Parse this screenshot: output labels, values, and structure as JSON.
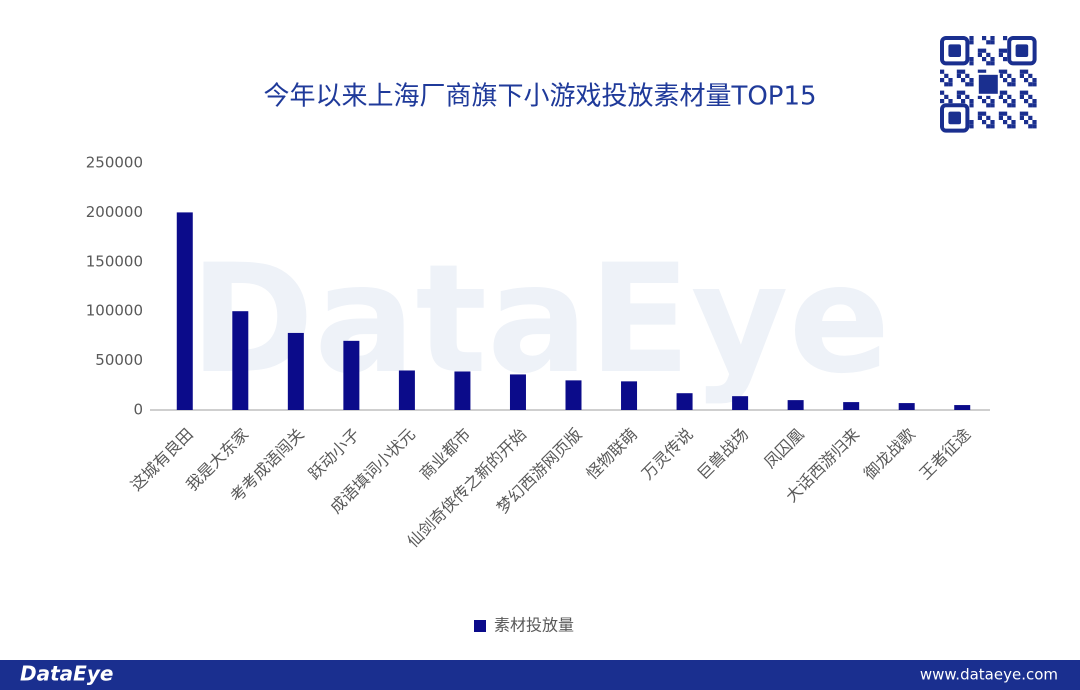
{
  "chart_data": {
    "type": "bar",
    "title": "今年以来上海厂商旗下小游戏投放素材量TOP15",
    "categories": [
      "这城有良田",
      "我是大东家",
      "考考成语闯关",
      "跃动小子",
      "成语填词小状元",
      "商业都市",
      "仙剑奇侠传之新的开始",
      "梦幻西游网页版",
      "怪物联萌",
      "万灵传说",
      "巨兽战场",
      "凤囚凰",
      "大话西游归来",
      "御龙战歌",
      "王者征途"
    ],
    "series": [
      {
        "name": "素材投放量",
        "color": "#0b0b8a",
        "values": [
          200000,
          100000,
          78000,
          70000,
          40000,
          39000,
          36000,
          30000,
          29000,
          17000,
          14000,
          10000,
          8000,
          7000,
          5000
        ]
      }
    ],
    "ylim": [
      0,
      250000
    ],
    "yticks": [
      0,
      50000,
      100000,
      150000,
      200000,
      250000
    ],
    "grid": false,
    "legend": "bottom"
  },
  "watermark": "DataEye",
  "footer": {
    "brand": "DataEye",
    "url": "www.dataeye.com"
  }
}
